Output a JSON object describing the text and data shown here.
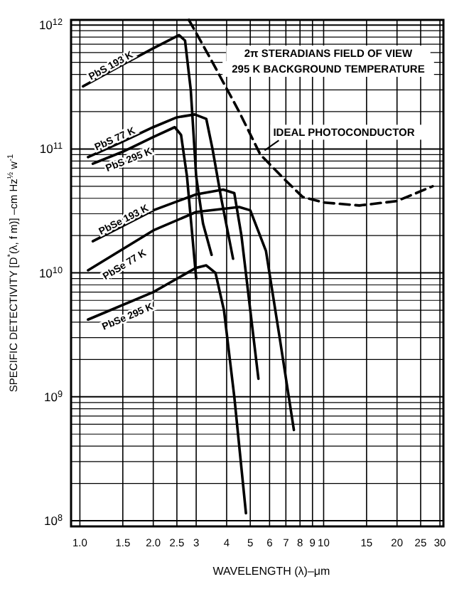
{
  "chart_data": {
    "type": "line",
    "xlabel": "WAVELENGTH (λ)–μm",
    "ylabel": "SPECIFIC DETECTIVITY [D$^{*}$(λ, f m)] –cm Hz$^{½}$ w$^{-1}$",
    "log": "xy",
    "grid": true,
    "xlim": [
      0.92,
      31
    ],
    "ylim": [
      90000000.0,
      1100000000000.0
    ],
    "xticks": [
      {
        "value": 1,
        "label": "1.0"
      },
      1.5,
      {
        "value": 2,
        "label": "2.0"
      },
      2.5,
      3,
      4,
      5,
      6,
      7,
      8,
      9,
      10,
      15,
      20,
      25,
      30
    ],
    "yticks": [
      {
        "value": 100000000.0,
        "label": "10$^{8}$"
      },
      {
        "value": 1000000000.0,
        "label": "10$^{9}$"
      },
      {
        "value": 10000000000.0,
        "label": "10$^{10}$"
      },
      {
        "value": 100000000000.0,
        "label": "10$^{11}$"
      },
      {
        "value": 1000000000000.0,
        "label": "10$^{12}$"
      }
    ],
    "annotations": [
      "2π STERADIANS FIELD OF VIEW",
      "295 K BACKGROUND TEMPERATURE"
    ],
    "series": [
      {
        "name": "PbS 193 K",
        "color": "#000000",
        "x": [
          1.03,
          1.5,
          2.0,
          2.55,
          2.7,
          2.85,
          3.0,
          3.2,
          3.47
        ],
        "values": [
          320000000000.0,
          480000000000.0,
          650000000000.0,
          830000000000.0,
          750000000000.0,
          300000000000.0,
          60000000000.0,
          25000000000.0,
          14000000000.0
        ]
      },
      {
        "name": "PbS 77 K",
        "color": "#000000",
        "x": [
          1.08,
          1.5,
          2.0,
          2.5,
          2.96,
          3.3,
          3.5,
          3.8,
          4.25
        ],
        "values": [
          86000000000.0,
          115000000000.0,
          150000000000.0,
          180000000000.0,
          190000000000.0,
          175000000000.0,
          100000000000.0,
          40000000000.0,
          13000000000.0
        ]
      },
      {
        "name": "PbS 295 K",
        "color": "#000000",
        "x": [
          1.13,
          1.5,
          2.0,
          2.45,
          2.6,
          2.75,
          3.0
        ],
        "values": [
          76000000000.0,
          95000000000.0,
          125000000000.0,
          150000000000.0,
          130000000000.0,
          60000000000.0,
          9000000000.0
        ]
      },
      {
        "name": "PbSe 193 K",
        "color": "#000000",
        "x": [
          1.13,
          2.0,
          3.0,
          3.87,
          4.3,
          4.6,
          5.0,
          5.4
        ],
        "values": [
          18000000000.0,
          32000000000.0,
          43000000000.0,
          47000000000.0,
          44000000000.0,
          20000000000.0,
          5000000000.0,
          1400000000.0
        ]
      },
      {
        "name": "PbSe 77 K",
        "color": "#000000",
        "x": [
          1.08,
          2.0,
          3.0,
          4.5,
          5.0,
          5.8,
          6.6,
          7.55
        ],
        "values": [
          10500000000.0,
          22000000000.0,
          31000000000.0,
          34000000000.0,
          32000000000.0,
          15000000000.0,
          3000000000.0,
          540000000.0
        ]
      },
      {
        "name": "PbSe 295 K",
        "color": "#000000",
        "x": [
          1.08,
          2.0,
          3.0,
          3.3,
          3.6,
          3.9,
          4.3,
          4.8
        ],
        "values": [
          4200000000.0,
          7000000000.0,
          11000000000.0,
          11500000000.0,
          10000000000.0,
          5000000000.0,
          1000000000.0,
          115000000.0
        ]
      },
      {
        "name": "IDEAL PHOTOCONDUCTOR",
        "color": "#000000",
        "line_style": "dashed",
        "x": [
          2.8,
          3.5,
          4.5,
          5.5,
          6.9,
          8.2,
          10,
          14,
          20,
          28
        ],
        "values": [
          1100000000000.0,
          500000000000.0,
          200000000000.0,
          90000000000.0,
          57000000000.0,
          41000000000.0,
          37000000000.0,
          35000000000.0,
          38000000000.0,
          50000000000.0
        ]
      }
    ]
  }
}
